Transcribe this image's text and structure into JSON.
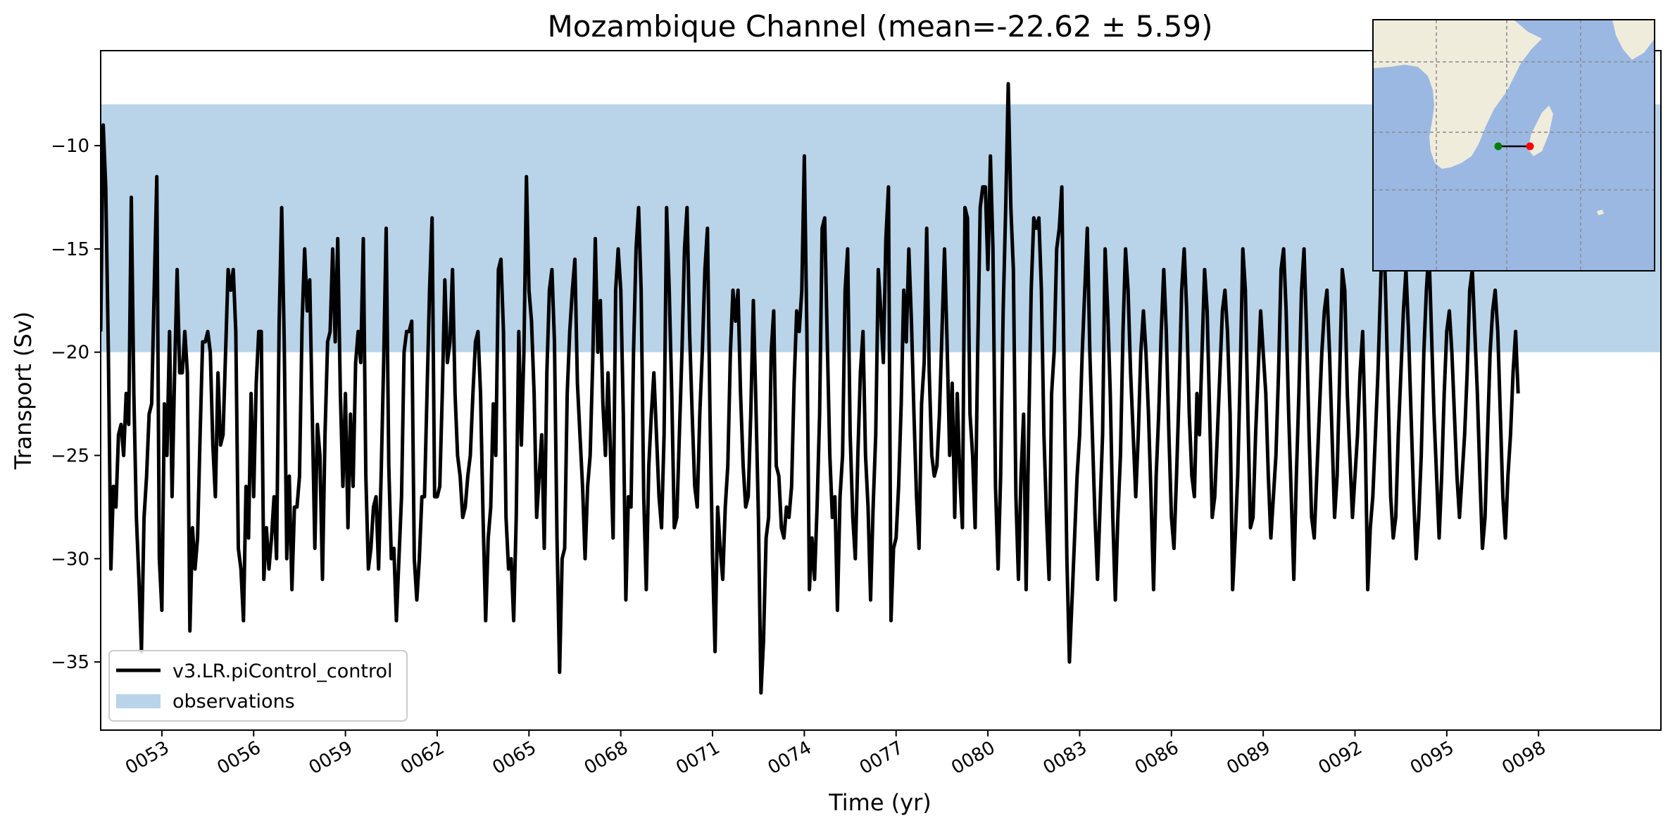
{
  "chart_data": {
    "type": "line",
    "title": "Mozambique Channel (mean=-22.62 ± 5.59)",
    "xlabel": "Time (yr)",
    "ylabel": "Transport (Sv)",
    "xlim": [
      51,
      102
    ],
    "ylim": [
      -38.3,
      -5.4
    ],
    "x_ticks": [
      53,
      56,
      59,
      62,
      65,
      68,
      71,
      74,
      77,
      80,
      83,
      86,
      89,
      92,
      95,
      98
    ],
    "x_tick_labels": [
      "0053",
      "0056",
      "0059",
      "0062",
      "0065",
      "0068",
      "0071",
      "0074",
      "0077",
      "0080",
      "0083",
      "0086",
      "0089",
      "0092",
      "0095",
      "0098"
    ],
    "y_ticks": [
      -35,
      -30,
      -25,
      -20,
      -15,
      -10
    ],
    "y_tick_labels": [
      "−35",
      "−30",
      "−25",
      "−20",
      "−15",
      "−10"
    ],
    "grid": false,
    "legend_position": "lower-left",
    "observations_band": {
      "name": "observations",
      "y_min": -20,
      "y_max": -8,
      "color": "#b9d4e8"
    },
    "series": [
      {
        "name": "v3.LR.piControl_control",
        "color": "#000000",
        "x_start": 51,
        "x_step": 0.0833333,
        "values": [
          -19,
          -9,
          -12,
          -20,
          -30.5,
          -26.5,
          -27.5,
          -24,
          -23.5,
          -25,
          -22,
          -23.5,
          -12.5,
          -22,
          -28,
          -31,
          -34.5,
          -28,
          -26,
          -23,
          -22.5,
          -17,
          -11.5,
          -30,
          -32.5,
          -22.5,
          -25,
          -19,
          -27,
          -21,
          -16,
          -21,
          -21,
          -19,
          -21,
          -33.5,
          -28.5,
          -30.5,
          -29,
          -24,
          -19.5,
          -19.5,
          -19,
          -20,
          -24.5,
          -27,
          -21,
          -24.5,
          -24,
          -20,
          -16,
          -17,
          -16,
          -19,
          -29.5,
          -30.5,
          -33,
          -26.5,
          -29,
          -22,
          -27,
          -21.5,
          -19,
          -19,
          -31,
          -28.5,
          -30.5,
          -29,
          -27,
          -30,
          -18.5,
          -13,
          -19.5,
          -30,
          -26,
          -31.5,
          -27.5,
          -27.5,
          -26,
          -18.5,
          -15,
          -18,
          -16.5,
          -23,
          -29.5,
          -23.5,
          -25,
          -31,
          -24,
          -19.5,
          -19,
          -15,
          -19.5,
          -14.5,
          -22,
          -26.5,
          -22,
          -28.5,
          -23,
          -26.5,
          -20.5,
          -19,
          -20.5,
          -14.5,
          -26,
          -30.5,
          -29.5,
          -27.5,
          -27,
          -30.5,
          -26,
          -20.5,
          -14,
          -25.5,
          -30,
          -29.5,
          -33,
          -30,
          -27,
          -20,
          -19,
          -19,
          -18.5,
          -30,
          -32,
          -30,
          -27,
          -27,
          -22,
          -17,
          -13.5,
          -27,
          -27,
          -26.5,
          -22,
          -16.5,
          -20.5,
          -19.5,
          -16,
          -22,
          -25,
          -26,
          -28,
          -27.5,
          -26,
          -25,
          -22,
          -19.5,
          -19,
          -22,
          -28,
          -33,
          -29,
          -27.5,
          -22.5,
          -25,
          -16,
          -15.5,
          -19,
          -28,
          -30.5,
          -30,
          -33,
          -28,
          -19,
          -24.5,
          -20,
          -11.5,
          -17,
          -18.5,
          -22,
          -28,
          -26,
          -24,
          -29.5,
          -21,
          -17,
          -16,
          -19.5,
          -29,
          -35.5,
          -30,
          -29.5,
          -22,
          -19,
          -17,
          -15.5,
          -21.5,
          -24,
          -26.5,
          -30,
          -26.5,
          -25,
          -20.5,
          -14.5,
          -20,
          -17.5,
          -22.5,
          -25,
          -21,
          -25,
          -29,
          -17,
          -15,
          -17,
          -23,
          -32,
          -27,
          -27.5,
          -20,
          -15,
          -13,
          -17,
          -27,
          -31.5,
          -25.5,
          -23,
          -21,
          -24,
          -27,
          -28.5,
          -24,
          -13,
          -17,
          -22,
          -28.5,
          -28,
          -24,
          -20,
          -15,
          -13,
          -19,
          -23,
          -26.5,
          -27.5,
          -23,
          -20,
          -16,
          -14,
          -23,
          -30,
          -34.5,
          -27.5,
          -29.5,
          -31,
          -27.5,
          -25.5,
          -20,
          -17,
          -18.5,
          -17,
          -22,
          -25.5,
          -27.5,
          -27,
          -23,
          -17.5,
          -22.5,
          -28,
          -36.5,
          -34,
          -29,
          -28,
          -20,
          -18,
          -25.5,
          -26,
          -28.5,
          -29,
          -27.5,
          -28,
          -26.5,
          -21.5,
          -18,
          -19,
          -17,
          -10.5,
          -19,
          -31.5,
          -29,
          -31,
          -27.5,
          -23,
          -14,
          -13.5,
          -19.5,
          -25,
          -28,
          -27,
          -32.5,
          -27,
          -25,
          -17,
          -15,
          -24,
          -28,
          -30,
          -25,
          -21,
          -19,
          -25,
          -27.5,
          -32,
          -27.5,
          -24,
          -16,
          -18,
          -20.5,
          -14.5,
          -12,
          -33,
          -29.5,
          -29,
          -26.5,
          -22.5,
          -17,
          -19.5,
          -15,
          -18.5,
          -23,
          -27,
          -29.5,
          -22.5,
          -20.5,
          -14,
          -21,
          -25,
          -26,
          -25.5,
          -23,
          -19,
          -15,
          -19.5,
          -25,
          -21.5,
          -28,
          -22,
          -26,
          -28.5,
          -13,
          -13.5,
          -23,
          -25,
          -28.5,
          -20,
          -13,
          -12,
          -12,
          -16,
          -10.5,
          -15,
          -26.5,
          -30.5,
          -26,
          -18,
          -13,
          -7,
          -13,
          -16,
          -27,
          -31,
          -26,
          -23,
          -31.5,
          -24,
          -17,
          -13.5,
          -14,
          -13.5,
          -17,
          -24,
          -28,
          -31,
          -22,
          -20,
          -15,
          -14,
          -12,
          -22,
          -30,
          -35,
          -32,
          -29,
          -26,
          -24,
          -20,
          -17,
          -14,
          -20,
          -24,
          -28,
          -31,
          -27.5,
          -24,
          -15,
          -18,
          -22,
          -28,
          -32,
          -28,
          -25,
          -19,
          -15,
          -17,
          -21,
          -24,
          -27,
          -24,
          -20,
          -18,
          -20,
          -23,
          -27,
          -31.5,
          -26,
          -23,
          -19,
          -16,
          -19,
          -24,
          -28,
          -29.5,
          -26,
          -22,
          -17,
          -15,
          -18,
          -23,
          -26,
          -27,
          -22,
          -24,
          -20,
          -16,
          -18,
          -23,
          -28,
          -27,
          -24,
          -21,
          -18,
          -17,
          -19,
          -23,
          -31.5,
          -29,
          -26,
          -21,
          -15,
          -17,
          -23,
          -28.5,
          -28,
          -24,
          -21,
          -18,
          -20,
          -22,
          -26,
          -29,
          -27,
          -25,
          -21,
          -16,
          -15,
          -18,
          -23,
          -27,
          -31,
          -26,
          -22,
          -17,
          -15,
          -19,
          -24,
          -28,
          -29,
          -26,
          -23,
          -20,
          -18,
          -17,
          -20,
          -24,
          -28,
          -26,
          -21,
          -16,
          -17,
          -22,
          -25,
          -28,
          -26,
          -24,
          -21,
          -19,
          -24,
          -31.5,
          -28.5,
          -27,
          -24,
          -21,
          -17,
          -13,
          -17,
          -22,
          -27,
          -29,
          -28,
          -24,
          -21,
          -18,
          -16,
          -19,
          -23,
          -27,
          -30,
          -28,
          -25,
          -20,
          -17,
          -15,
          -19,
          -23,
          -26,
          -29,
          -26,
          -22,
          -19,
          -18,
          -20,
          -23,
          -26,
          -28,
          -26,
          -24,
          -21,
          -17,
          -16,
          -19,
          -22,
          -26,
          -29.5,
          -28,
          -24,
          -20,
          -18,
          -17,
          -19,
          -23,
          -27,
          -29,
          -26,
          -24,
          -21,
          -19,
          -22
        ]
      }
    ],
    "inset_map": {
      "land_color": "#efecdc",
      "ocean_color": "#9bb8e3",
      "start_point_color": "#008000",
      "end_point_color": "#ff0000"
    }
  }
}
